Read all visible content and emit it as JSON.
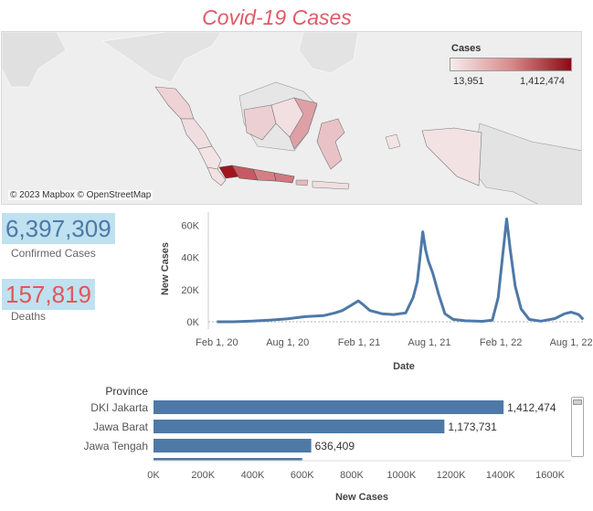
{
  "title": "Covid-19 Cases",
  "map": {
    "attribution": "© 2023 Mapbox © OpenStreetMap",
    "legend": {
      "title": "Cases",
      "min": "13,951",
      "max": "1,412,474",
      "color_low": "#f6ecec",
      "color_high": "#8b0a14"
    }
  },
  "kpis": {
    "confirmed": {
      "value": "6,397,309",
      "label": "Confirmed Cases",
      "color": "#4e79a7"
    },
    "deaths": {
      "value": "157,819",
      "label": "Deaths",
      "color": "#e15759"
    }
  },
  "colors": {
    "series": "#4e79a7",
    "accent": "#e05a66",
    "kpi_bg": "#bfe1f0"
  },
  "chart_data": [
    {
      "type": "line",
      "title": "",
      "xlabel": "Date",
      "ylabel": "New Cases",
      "x_ticks": [
        "Feb 1, 20",
        "Aug 1, 20",
        "Feb 1, 21",
        "Aug 1, 21",
        "Feb 1, 22",
        "Aug 1, 22"
      ],
      "y_ticks": [
        "0K",
        "20K",
        "40K",
        "60K"
      ],
      "ylim": [
        0,
        66000
      ],
      "grid": false,
      "series": [
        {
          "values": [
            {
              "x": "2020-02-01",
              "y": 0
            },
            {
              "x": "2020-03-15",
              "y": 0
            },
            {
              "x": "2020-05-01",
              "y": 400
            },
            {
              "x": "2020-06-15",
              "y": 1000
            },
            {
              "x": "2020-08-01",
              "y": 1800
            },
            {
              "x": "2020-09-15",
              "y": 3200
            },
            {
              "x": "2020-11-01",
              "y": 3800
            },
            {
              "x": "2020-12-01",
              "y": 5500
            },
            {
              "x": "2020-12-20",
              "y": 7000
            },
            {
              "x": "2021-01-10",
              "y": 10000
            },
            {
              "x": "2021-01-30",
              "y": 13000
            },
            {
              "x": "2021-02-10",
              "y": 11000
            },
            {
              "x": "2021-03-01",
              "y": 7000
            },
            {
              "x": "2021-04-01",
              "y": 5000
            },
            {
              "x": "2021-05-01",
              "y": 4500
            },
            {
              "x": "2021-06-01",
              "y": 5500
            },
            {
              "x": "2021-06-20",
              "y": 15000
            },
            {
              "x": "2021-07-01",
              "y": 25000
            },
            {
              "x": "2021-07-08",
              "y": 40000
            },
            {
              "x": "2021-07-15",
              "y": 56000
            },
            {
              "x": "2021-07-22",
              "y": 45000
            },
            {
              "x": "2021-07-29",
              "y": 38000
            },
            {
              "x": "2021-08-10",
              "y": 30000
            },
            {
              "x": "2021-08-25",
              "y": 17000
            },
            {
              "x": "2021-09-10",
              "y": 5000
            },
            {
              "x": "2021-10-01",
              "y": 1500
            },
            {
              "x": "2021-11-01",
              "y": 600
            },
            {
              "x": "2021-12-15",
              "y": 300
            },
            {
              "x": "2022-01-10",
              "y": 1000
            },
            {
              "x": "2022-01-25",
              "y": 15000
            },
            {
              "x": "2022-02-05",
              "y": 40000
            },
            {
              "x": "2022-02-16",
              "y": 64000
            },
            {
              "x": "2022-02-25",
              "y": 45000
            },
            {
              "x": "2022-03-10",
              "y": 22000
            },
            {
              "x": "2022-03-25",
              "y": 8000
            },
            {
              "x": "2022-04-15",
              "y": 1500
            },
            {
              "x": "2022-05-15",
              "y": 400
            },
            {
              "x": "2022-06-20",
              "y": 2000
            },
            {
              "x": "2022-07-15",
              "y": 5000
            },
            {
              "x": "2022-08-01",
              "y": 6000
            },
            {
              "x": "2022-08-20",
              "y": 4500
            },
            {
              "x": "2022-09-01",
              "y": 1500
            }
          ]
        }
      ]
    },
    {
      "type": "bar",
      "orientation": "horizontal",
      "title": "",
      "row_header": "Province",
      "xlabel": "New Cases",
      "x_ticks": [
        "0K",
        "200K",
        "400K",
        "600K",
        "800K",
        "1000K",
        "1200K",
        "1400K",
        "1600K"
      ],
      "xlim": [
        0,
        1600000
      ],
      "categories": [
        "DKI Jakarta",
        "Jawa Barat",
        "Jawa Tengah"
      ],
      "values": [
        1412474,
        1173731,
        636409
      ],
      "value_labels": [
        "1,412,474",
        "1,173,731",
        "636,409"
      ],
      "partial_next_value": 600000
    }
  ]
}
